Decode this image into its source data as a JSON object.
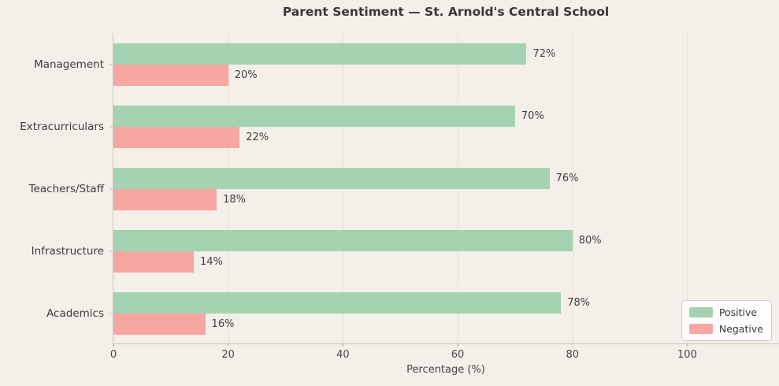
{
  "chart_data": {
    "type": "bar",
    "orientation": "horizontal",
    "title": "Parent Sentiment — St. Arnold's Central School",
    "categories": [
      "Management",
      "Extracurriculars",
      "Teachers/Staff",
      "Infrastructure",
      "Academics"
    ],
    "series": [
      {
        "name": "Positive",
        "color": "#a5d3b2",
        "values": [
          72,
          70,
          76,
          80,
          78
        ]
      },
      {
        "name": "Negative",
        "color": "#f7a6a2",
        "values": [
          20,
          22,
          18,
          14,
          16
        ]
      }
    ],
    "bar_value_labels": {
      "Positive": [
        "72%",
        "70%",
        "76%",
        "80%",
        "78%"
      ],
      "Negative": [
        "20%",
        "22%",
        "18%",
        "14%",
        "16%"
      ]
    },
    "xlabel": "Percentage (%)",
    "xtick_labels": [
      "0",
      "20",
      "40",
      "60",
      "80",
      "100"
    ],
    "xticks": [
      0,
      20,
      40,
      60,
      80,
      100
    ],
    "xlim": [
      0,
      116
    ],
    "grid": "vertical-dashed",
    "legend_position": "lower right",
    "legend_entries": [
      "Positive",
      "Negative"
    ]
  },
  "colors": {
    "background": "#f4efe9",
    "positive": "#a5d3b2",
    "negative": "#f7a6a2",
    "gridline": "#ddd8d1",
    "spine": "#c8c4be",
    "title_text": "#3b3835",
    "label_text": "#3d3a38"
  }
}
